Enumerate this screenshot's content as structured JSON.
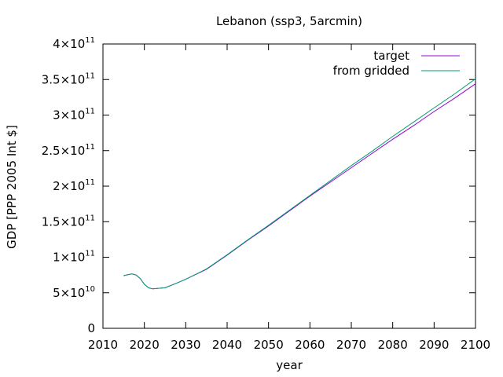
{
  "chart_data": {
    "type": "line",
    "title": "Lebanon (ssp3, 5arcmin)",
    "xlabel": "year",
    "ylabel": "GDP [PPP 2005 Int $]",
    "xlim": [
      2010,
      2100
    ],
    "ylim": [
      0,
      400000000000
    ],
    "xticks": [
      2010,
      2020,
      2030,
      2040,
      2050,
      2060,
      2070,
      2080,
      2090,
      2100
    ],
    "yticks": [
      {
        "value": 0,
        "mant": "0",
        "exp": ""
      },
      {
        "value": 50000000000,
        "mant": "5×10",
        "exp": "10"
      },
      {
        "value": 100000000000,
        "mant": "1×10",
        "exp": "11"
      },
      {
        "value": 150000000000,
        "mant": "1.5×10",
        "exp": "11"
      },
      {
        "value": 200000000000,
        "mant": "2×10",
        "exp": "11"
      },
      {
        "value": 250000000000,
        "mant": "2.5×10",
        "exp": "11"
      },
      {
        "value": 300000000000,
        "mant": "3×10",
        "exp": "11"
      },
      {
        "value": 350000000000,
        "mant": "3.5×10",
        "exp": "11"
      },
      {
        "value": 400000000000,
        "mant": "4×10",
        "exp": "11"
      }
    ],
    "grid": false,
    "legend_position": "top-right",
    "series": [
      {
        "name": "target",
        "color": "#9400d3",
        "x": [
          2015,
          2016,
          2017,
          2018,
          2019,
          2020,
          2021,
          2022,
          2025,
          2028,
          2030,
          2035,
          2040,
          2045,
          2050,
          2055,
          2060,
          2065,
          2070,
          2075,
          2080,
          2085,
          2090,
          2095,
          2100
        ],
        "y": [
          74000000000,
          75500000000,
          76500000000,
          75000000000,
          70000000000,
          62000000000,
          57000000000,
          55500000000,
          57000000000,
          64000000000,
          69000000000,
          83000000000,
          103000000000,
          124000000000,
          144000000000,
          165000000000,
          186000000000,
          206000000000,
          226000000000,
          246000000000,
          266000000000,
          285000000000,
          305000000000,
          324000000000,
          344000000000
        ]
      },
      {
        "name": "from gridded",
        "color": "#009e73",
        "x": [
          2015,
          2016,
          2017,
          2018,
          2019,
          2020,
          2021,
          2022,
          2025,
          2028,
          2030,
          2035,
          2040,
          2045,
          2050,
          2055,
          2060,
          2065,
          2070,
          2075,
          2080,
          2085,
          2090,
          2095,
          2100
        ],
        "y": [
          74000000000,
          75500000000,
          76500000000,
          75000000000,
          70000000000,
          62000000000,
          57000000000,
          55500000000,
          57000000000,
          64000000000,
          69000000000,
          83500000000,
          103500000000,
          124500000000,
          145000000000,
          166000000000,
          187000000000,
          208000000000,
          229000000000,
          249000000000,
          270000000000,
          290000000000,
          310000000000,
          330000000000,
          351000000000
        ]
      }
    ]
  }
}
